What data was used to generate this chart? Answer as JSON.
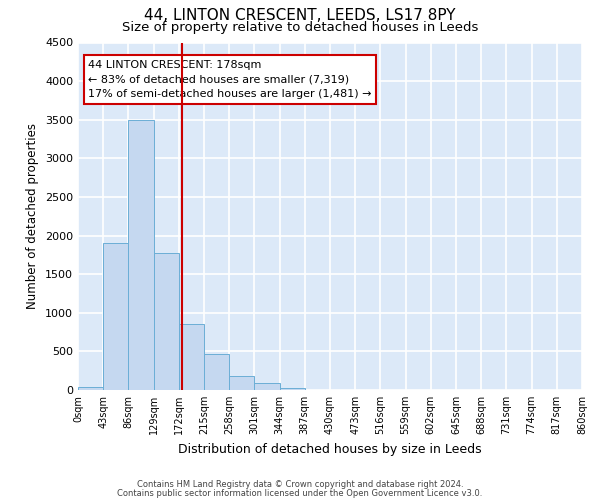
{
  "title": "44, LINTON CRESCENT, LEEDS, LS17 8PY",
  "subtitle": "Size of property relative to detached houses in Leeds",
  "xlabel": "Distribution of detached houses by size in Leeds",
  "ylabel": "Number of detached properties",
  "bin_labels": [
    "0sqm",
    "43sqm",
    "86sqm",
    "129sqm",
    "172sqm",
    "215sqm",
    "258sqm",
    "301sqm",
    "344sqm",
    "387sqm",
    "430sqm",
    "473sqm",
    "516sqm",
    "559sqm",
    "602sqm",
    "645sqm",
    "688sqm",
    "731sqm",
    "774sqm",
    "817sqm",
    "860sqm"
  ],
  "bin_edges": [
    0,
    43,
    86,
    129,
    172,
    215,
    258,
    301,
    344,
    387,
    430,
    473,
    516,
    559,
    602,
    645,
    688,
    731,
    774,
    817,
    860
  ],
  "bar_heights": [
    40,
    1900,
    3500,
    1780,
    860,
    460,
    175,
    85,
    30,
    5,
    0,
    0,
    0,
    0,
    0,
    0,
    0,
    0,
    0,
    0
  ],
  "bar_color": "#c5d8f0",
  "bar_edgecolor": "#6baed6",
  "property_line_x": 178,
  "property_line_color": "#cc0000",
  "ylim": [
    0,
    4500
  ],
  "yticks": [
    0,
    500,
    1000,
    1500,
    2000,
    2500,
    3000,
    3500,
    4000,
    4500
  ],
  "annotation_title": "44 LINTON CRESCENT: 178sqm",
  "annotation_line1": "← 83% of detached houses are smaller (7,319)",
  "annotation_line2": "17% of semi-detached houses are larger (1,481) →",
  "annotation_box_facecolor": "#ffffff",
  "annotation_box_edgecolor": "#cc0000",
  "footnote1": "Contains HM Land Registry data © Crown copyright and database right 2024.",
  "footnote2": "Contains public sector information licensed under the Open Government Licence v3.0.",
  "fig_facecolor": "#ffffff",
  "axes_facecolor": "#dce9f8",
  "grid_color": "#ffffff",
  "title_fontsize": 11,
  "subtitle_fontsize": 9.5
}
